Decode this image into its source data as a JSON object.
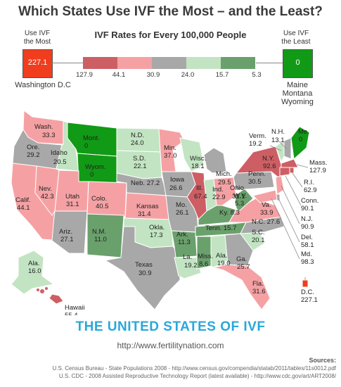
{
  "title": "Which States Use IVF the Most – and the Least?",
  "subtitle": "IVF Rates for Every 100,000 People",
  "most": {
    "label_line1": "Use IVF",
    "label_line2": "the Most",
    "value": "227.1",
    "name": "Washington D.C",
    "color": "#f03d1e"
  },
  "least": {
    "label_line1": "Use IVF",
    "label_line2": "the Least",
    "value": "0",
    "name_lines": [
      "Maine",
      "Montana",
      "Wyoming"
    ],
    "color": "#119a15"
  },
  "scale": {
    "colors": [
      "#cd5f64",
      "#f5a1a4",
      "#a8a8a8",
      "#c2e4c2",
      "#6aa06c"
    ],
    "ticks": [
      "127.9",
      "44.1",
      "30.9",
      "24.0",
      "15.7",
      "5.3"
    ]
  },
  "states": [
    {
      "id": "wa",
      "name": "Wash.",
      "value": "33.3"
    },
    {
      "id": "or",
      "name": "Ore.",
      "value": "29.2"
    },
    {
      "id": "id",
      "name": "Idaho",
      "value": "20.5"
    },
    {
      "id": "mt",
      "name": "Mont.",
      "value": "0"
    },
    {
      "id": "wy",
      "name": "Wyom.",
      "value": "0"
    },
    {
      "id": "ca",
      "name": "Calif.",
      "value": "44.1"
    },
    {
      "id": "nv",
      "name": "Nev.",
      "value": "42.3"
    },
    {
      "id": "ut",
      "name": "Utah",
      "value": "31.1"
    },
    {
      "id": "co",
      "name": "Colo.",
      "value": "40.5"
    },
    {
      "id": "az",
      "name": "Ariz.",
      "value": "27.1"
    },
    {
      "id": "nm",
      "name": "N.M.",
      "value": "11.0"
    },
    {
      "id": "nd",
      "name": "N.D.",
      "value": "24.0"
    },
    {
      "id": "sd",
      "name": "S.D.",
      "value": "22.1"
    },
    {
      "id": "ne",
      "name": "Neb.",
      "value": "27.2"
    },
    {
      "id": "ks",
      "name": "Kansas",
      "value": "31.4"
    },
    {
      "id": "ok",
      "name": "Okla.",
      "value": "17.3"
    },
    {
      "id": "tx",
      "name": "Texas",
      "value": "30.9"
    },
    {
      "id": "mn",
      "name": "Min.",
      "value": "37.0"
    },
    {
      "id": "ia",
      "name": "Iowa",
      "value": "26.6"
    },
    {
      "id": "mo",
      "name": "Mo.",
      "value": "26.1"
    },
    {
      "id": "ar",
      "name": "Ark.",
      "value": "11.3"
    },
    {
      "id": "la",
      "name": "La.",
      "value": "19.2"
    },
    {
      "id": "wi",
      "name": "Wisc.",
      "value": "18.1"
    },
    {
      "id": "il",
      "name": "Ill.",
      "value": "67.4"
    },
    {
      "id": "mi",
      "name": "Mich.",
      "value": "29.5"
    },
    {
      "id": "in",
      "name": "Ind.",
      "value": "22.9"
    },
    {
      "id": "oh",
      "name": "Ohio",
      "value": "31.1"
    },
    {
      "id": "ky",
      "name": "Ky.",
      "value": "8.3"
    },
    {
      "id": "tn",
      "name": "Tenn.",
      "value": "15.7"
    },
    {
      "id": "ms",
      "name": "Miss.",
      "value": "8.6"
    },
    {
      "id": "al",
      "name": "Ala.",
      "value": "19.0"
    },
    {
      "id": "ga",
      "name": "Ga.",
      "value": "25.7"
    },
    {
      "id": "fl",
      "name": "Fla.",
      "value": "31.6"
    },
    {
      "id": "sc",
      "name": "S.C.",
      "value": "20.1"
    },
    {
      "id": "nc",
      "name": "N.C.",
      "value": "27.6"
    },
    {
      "id": "va",
      "name": "Va.",
      "value": "33.9"
    },
    {
      "id": "wv",
      "name": "W.V.",
      "value": "5.3"
    },
    {
      "id": "pa",
      "name": "Penn.",
      "value": "30.5"
    },
    {
      "id": "ny",
      "name": "N.Y.",
      "value": "92.6"
    },
    {
      "id": "vt",
      "name": "Verm.",
      "value": "19.2"
    },
    {
      "id": "nh",
      "name": "N.H.",
      "value": "13.1"
    },
    {
      "id": "me",
      "name": "Me.",
      "value": "0"
    },
    {
      "id": "ma",
      "name": "Mass.",
      "value": "127.9"
    },
    {
      "id": "ri",
      "name": "R.I.",
      "value": "62.9"
    },
    {
      "id": "ct",
      "name": "Conn.",
      "value": "90.1"
    },
    {
      "id": "nj",
      "name": "N.J.",
      "value": "90.9"
    },
    {
      "id": "de",
      "name": "Del.",
      "value": "58.1"
    },
    {
      "id": "md",
      "name": "Md.",
      "value": "98.3"
    },
    {
      "id": "dc",
      "name": "D.C.",
      "value": "227.1"
    },
    {
      "id": "ak",
      "name": "Ala.",
      "value": "16.0"
    },
    {
      "id": "hi",
      "name": "Hawaii",
      "value": "55.4"
    }
  ],
  "banner": "THE UNITED STATES OF IVF",
  "url": "http://www.fertilitynation.com",
  "sources": {
    "heading": "Sources:",
    "line1": "U.S. Census Bureau - State Populations 2008 - http://www.census.gov/compendia/statab/2011/tables/11s0012.pdf",
    "line2": "U.S. CDC - 2008 Assisted Reproductive Technology Report (latest available) - http://www.cdc.gov/art/ART2008/"
  }
}
